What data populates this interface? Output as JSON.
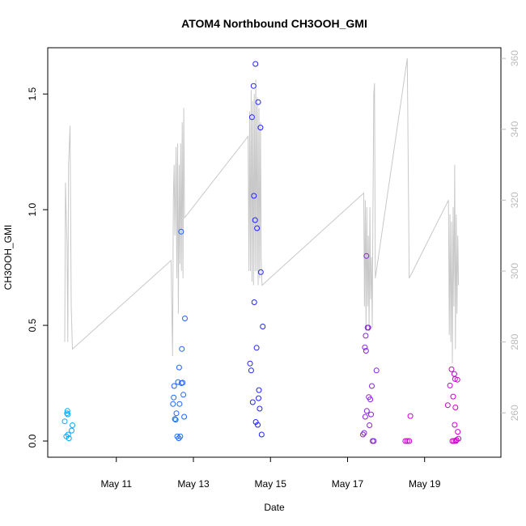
{
  "chart_data": {
    "type": "scatter",
    "title": "ATOM4 Northbound CH3OOH_GMI",
    "xlabel": "Date",
    "ylabel": "CH3OOH_GMI",
    "x_ticks": [
      "May 11",
      "May 13",
      "May 15",
      "May 17",
      "May 19"
    ],
    "x_tick_days": [
      11,
      13,
      15,
      17,
      19
    ],
    "xlim_days": [
      9.22,
      20.98
    ],
    "y_ticks": [
      "0.0",
      "0.5",
      "1.0",
      "1.5"
    ],
    "y_tick_values": [
      0.0,
      0.5,
      1.0,
      1.5
    ],
    "ylim": [
      -0.07,
      1.7
    ],
    "y2_ticks": [
      "260",
      "280",
      "300",
      "320",
      "340",
      "360"
    ],
    "y2_tick_values": [
      260,
      280,
      300,
      320,
      340,
      360
    ],
    "y2lim": [
      247.5,
      363
    ],
    "grid": false,
    "colors": {
      "points_early": "#00aaff",
      "points_mid": "#2222ff",
      "points_late": "#cc00cc",
      "line": "#c8c8c8",
      "right_axis": "#bbbbbb"
    },
    "points": [
      [
        9.66,
        0.085
      ],
      [
        9.7,
        0.02
      ],
      [
        9.72,
        0.12
      ],
      [
        9.73,
        0.13
      ],
      [
        9.74,
        0.115
      ],
      [
        9.75,
        0.028
      ],
      [
        9.77,
        0.012
      ],
      [
        9.84,
        0.045
      ],
      [
        9.86,
        0.068
      ],
      [
        12.47,
        0.16
      ],
      [
        12.49,
        0.188
      ],
      [
        12.5,
        0.238
      ],
      [
        12.52,
        0.095
      ],
      [
        12.54,
        0.092
      ],
      [
        12.56,
        0.12
      ],
      [
        12.58,
        0.02
      ],
      [
        12.6,
        0.255
      ],
      [
        12.62,
        0.012
      ],
      [
        12.63,
        0.318
      ],
      [
        12.64,
        0.16
      ],
      [
        12.66,
        0.02
      ],
      [
        12.68,
        0.905
      ],
      [
        12.69,
        0.25
      ],
      [
        12.7,
        0.398
      ],
      [
        12.72,
        0.252
      ],
      [
        12.74,
        0.2
      ],
      [
        12.76,
        0.105
      ],
      [
        12.78,
        0.53
      ],
      [
        14.47,
        0.335
      ],
      [
        14.5,
        0.305
      ],
      [
        14.52,
        1.4
      ],
      [
        14.54,
        0.168
      ],
      [
        14.56,
        1.535
      ],
      [
        14.57,
        1.06
      ],
      [
        14.58,
        0.6
      ],
      [
        14.6,
        0.955
      ],
      [
        14.61,
        1.63
      ],
      [
        14.62,
        0.082
      ],
      [
        14.64,
        0.403
      ],
      [
        14.65,
        0.92
      ],
      [
        14.67,
        0.07
      ],
      [
        14.68,
        1.465
      ],
      [
        14.69,
        0.185
      ],
      [
        14.7,
        0.22
      ],
      [
        14.72,
        0.14
      ],
      [
        14.74,
        1.355
      ],
      [
        14.75,
        0.73
      ],
      [
        14.77,
        0.028
      ],
      [
        14.8,
        0.495
      ],
      [
        17.4,
        0.028
      ],
      [
        17.43,
        0.035
      ],
      [
        17.45,
        0.405
      ],
      [
        17.46,
        0.105
      ],
      [
        17.47,
        0.455
      ],
      [
        17.48,
        0.39
      ],
      [
        17.49,
        0.8
      ],
      [
        17.5,
        0.13
      ],
      [
        17.52,
        0.49
      ],
      [
        17.54,
        0.49
      ],
      [
        17.55,
        0.19
      ],
      [
        17.57,
        0.068
      ],
      [
        17.59,
        0.18
      ],
      [
        17.61,
        0.115
      ],
      [
        17.63,
        0.238
      ],
      [
        17.65,
        0.0
      ],
      [
        17.68,
        0.0
      ],
      [
        17.75,
        0.305
      ],
      [
        18.5,
        0.0
      ],
      [
        18.55,
        0.0
      ],
      [
        18.6,
        0.0
      ],
      [
        18.63,
        0.108
      ],
      [
        19.6,
        0.155
      ],
      [
        19.66,
        0.24
      ],
      [
        19.7,
        0.31
      ],
      [
        19.72,
        0.0
      ],
      [
        19.74,
        0.192
      ],
      [
        19.76,
        0.0
      ],
      [
        19.77,
        0.29
      ],
      [
        19.78,
        0.07
      ],
      [
        19.79,
        0.268
      ],
      [
        19.8,
        0.145
      ],
      [
        19.81,
        0.0
      ],
      [
        19.83,
        0.005
      ],
      [
        19.85,
        0.265
      ],
      [
        19.86,
        0.04
      ],
      [
        19.88,
        0.01
      ]
    ],
    "line_y2": [
      [
        9.66,
        280
      ],
      [
        9.68,
        325
      ],
      [
        9.7,
        315
      ],
      [
        9.72,
        308
      ],
      [
        9.74,
        280
      ],
      [
        9.76,
        330
      ],
      [
        9.8,
        341
      ],
      [
        9.83,
        290
      ],
      [
        9.86,
        278
      ],
      [
        12.42,
        303
      ],
      [
        12.44,
        290
      ],
      [
        12.46,
        276
      ],
      [
        12.48,
        320
      ],
      [
        12.5,
        330
      ],
      [
        12.52,
        310
      ],
      [
        12.55,
        335
      ],
      [
        12.57,
        298
      ],
      [
        12.59,
        336
      ],
      [
        12.61,
        288
      ],
      [
        12.63,
        330
      ],
      [
        12.65,
        302
      ],
      [
        12.67,
        336
      ],
      [
        12.69,
        300
      ],
      [
        12.71,
        342
      ],
      [
        12.73,
        298
      ],
      [
        12.75,
        346
      ],
      [
        12.77,
        315
      ],
      [
        14.42,
        338
      ],
      [
        14.44,
        300
      ],
      [
        14.46,
        345
      ],
      [
        14.48,
        300
      ],
      [
        14.5,
        351
      ],
      [
        14.52,
        297
      ],
      [
        14.54,
        348
      ],
      [
        14.56,
        296
      ],
      [
        14.58,
        350
      ],
      [
        14.6,
        300
      ],
      [
        14.62,
        354
      ],
      [
        14.64,
        300
      ],
      [
        14.66,
        349
      ],
      [
        14.68,
        296
      ],
      [
        14.7,
        346
      ],
      [
        14.72,
        298
      ],
      [
        14.74,
        342
      ],
      [
        14.76,
        303
      ],
      [
        14.78,
        296
      ],
      [
        17.42,
        322
      ],
      [
        17.44,
        290
      ],
      [
        17.46,
        320
      ],
      [
        17.48,
        283
      ],
      [
        17.5,
        318
      ],
      [
        17.52,
        290
      ],
      [
        17.54,
        310
      ],
      [
        17.56,
        283
      ],
      [
        17.58,
        318
      ],
      [
        17.6,
        292
      ],
      [
        17.62,
        304
      ],
      [
        17.64,
        284
      ],
      [
        17.66,
        318
      ],
      [
        17.68,
        350
      ],
      [
        17.7,
        353
      ],
      [
        17.72,
        298
      ],
      [
        18.55,
        360
      ],
      [
        18.6,
        298
      ],
      [
        19.62,
        320
      ],
      [
        19.64,
        282
      ],
      [
        19.66,
        316
      ],
      [
        19.68,
        280
      ],
      [
        19.7,
        314
      ],
      [
        19.72,
        274
      ],
      [
        19.74,
        318
      ],
      [
        19.76,
        290
      ],
      [
        19.78,
        330
      ],
      [
        19.8,
        278
      ],
      [
        19.82,
        316
      ],
      [
        19.84,
        288
      ],
      [
        19.86,
        310
      ],
      [
        19.88,
        296
      ]
    ]
  }
}
